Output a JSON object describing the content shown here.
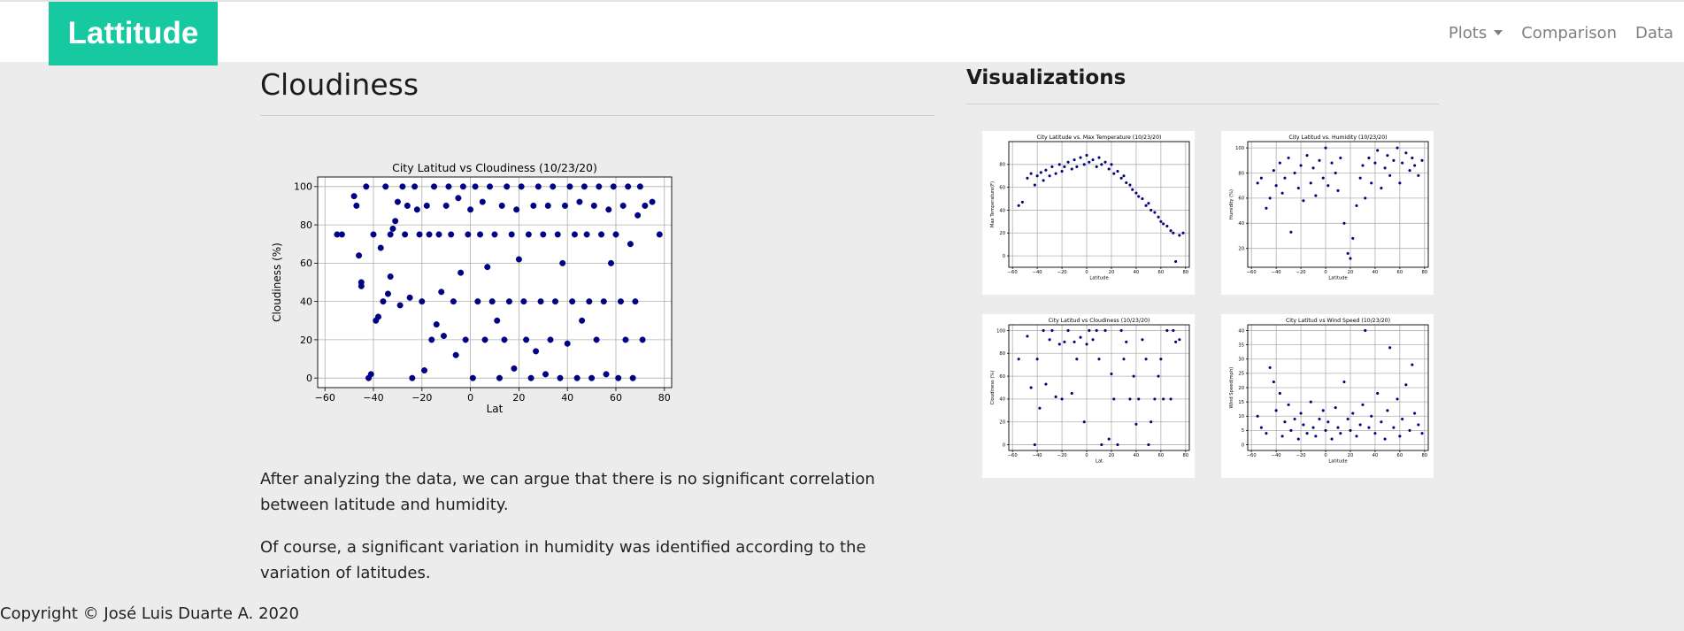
{
  "nav": {
    "brand": "Lattitude",
    "links": [
      "Plots",
      "Comparison",
      "Data"
    ]
  },
  "main": {
    "title": "Cloudiness",
    "paragraphs": [
      "After analyzing the data, we can argue that there is no significant correlation between latitude and humidity.",
      "Of course, a significant variation in humidity was identified according to the variation of latitudes."
    ]
  },
  "visualizations": {
    "title": "Visualizations"
  },
  "footer": {
    "text": "Copyright © José Luis Duarte A. 2020"
  },
  "colors": {
    "brand": "#17c9a0",
    "marker": "#00008b"
  },
  "chart_data": [
    {
      "type": "scatter",
      "title": "City Latitud vs Cloudiness (10/23/20)",
      "xlabel": "Lat",
      "ylabel": "Cloudiness (%)",
      "xlim": [
        -63,
        83
      ],
      "ylim": [
        -5,
        105
      ],
      "xticks": [
        -60,
        -40,
        -20,
        0,
        20,
        40,
        60,
        80
      ],
      "yticks": [
        0,
        20,
        40,
        60,
        80,
        100
      ],
      "grid": true,
      "points": [
        [
          -55,
          75
        ],
        [
          -53,
          75
        ],
        [
          -48,
          95
        ],
        [
          -47,
          90
        ],
        [
          -46,
          64
        ],
        [
          -45,
          50
        ],
        [
          -45,
          48
        ],
        [
          -43,
          100
        ],
        [
          -42,
          0
        ],
        [
          -41,
          2
        ],
        [
          -40,
          75
        ],
        [
          -39,
          30
        ],
        [
          -38,
          32
        ],
        [
          -37,
          68
        ],
        [
          -36,
          40
        ],
        [
          -35,
          100
        ],
        [
          -34,
          44
        ],
        [
          -33,
          75
        ],
        [
          -33,
          53
        ],
        [
          -32,
          78
        ],
        [
          -31,
          82
        ],
        [
          -30,
          92
        ],
        [
          -29,
          38
        ],
        [
          -28,
          100
        ],
        [
          -27,
          75
        ],
        [
          -26,
          90
        ],
        [
          -25,
          42
        ],
        [
          -24,
          0
        ],
        [
          -23,
          100
        ],
        [
          -22,
          88
        ],
        [
          -21,
          75
        ],
        [
          -20,
          40
        ],
        [
          -19,
          4
        ],
        [
          -18,
          90
        ],
        [
          -17,
          75
        ],
        [
          -16,
          20
        ],
        [
          -15,
          100
        ],
        [
          -14,
          28
        ],
        [
          -13,
          75
        ],
        [
          -12,
          45
        ],
        [
          -11,
          22
        ],
        [
          -10,
          90
        ],
        [
          -9,
          100
        ],
        [
          -8,
          75
        ],
        [
          -7,
          40
        ],
        [
          -6,
          12
        ],
        [
          -5,
          94
        ],
        [
          -4,
          55
        ],
        [
          -3,
          100
        ],
        [
          -2,
          20
        ],
        [
          -1,
          75
        ],
        [
          0,
          88
        ],
        [
          1,
          0
        ],
        [
          2,
          100
        ],
        [
          3,
          40
        ],
        [
          4,
          75
        ],
        [
          5,
          92
        ],
        [
          6,
          20
        ],
        [
          7,
          58
        ],
        [
          8,
          100
        ],
        [
          9,
          40
        ],
        [
          10,
          75
        ],
        [
          11,
          30
        ],
        [
          12,
          0
        ],
        [
          13,
          90
        ],
        [
          14,
          20
        ],
        [
          15,
          100
        ],
        [
          16,
          40
        ],
        [
          17,
          75
        ],
        [
          18,
          5
        ],
        [
          19,
          88
        ],
        [
          20,
          62
        ],
        [
          21,
          100
        ],
        [
          22,
          40
        ],
        [
          23,
          20
        ],
        [
          24,
          75
        ],
        [
          25,
          0
        ],
        [
          26,
          90
        ],
        [
          27,
          14
        ],
        [
          28,
          100
        ],
        [
          29,
          40
        ],
        [
          30,
          75
        ],
        [
          31,
          2
        ],
        [
          32,
          90
        ],
        [
          33,
          20
        ],
        [
          34,
          100
        ],
        [
          35,
          40
        ],
        [
          36,
          75
        ],
        [
          37,
          0
        ],
        [
          38,
          60
        ],
        [
          39,
          90
        ],
        [
          40,
          18
        ],
        [
          41,
          100
        ],
        [
          42,
          40
        ],
        [
          43,
          75
        ],
        [
          44,
          0
        ],
        [
          45,
          92
        ],
        [
          46,
          30
        ],
        [
          47,
          100
        ],
        [
          48,
          75
        ],
        [
          49,
          40
        ],
        [
          50,
          0
        ],
        [
          51,
          90
        ],
        [
          52,
          20
        ],
        [
          53,
          100
        ],
        [
          54,
          75
        ],
        [
          55,
          40
        ],
        [
          56,
          2
        ],
        [
          57,
          88
        ],
        [
          58,
          60
        ],
        [
          59,
          100
        ],
        [
          60,
          75
        ],
        [
          61,
          0
        ],
        [
          62,
          40
        ],
        [
          63,
          90
        ],
        [
          64,
          20
        ],
        [
          65,
          100
        ],
        [
          66,
          70
        ],
        [
          67,
          0
        ],
        [
          68,
          40
        ],
        [
          69,
          85
        ],
        [
          70,
          100
        ],
        [
          71,
          20
        ],
        [
          72,
          90
        ],
        [
          75,
          92
        ],
        [
          78,
          75
        ]
      ]
    },
    {
      "type": "scatter",
      "title": "City Latitude vs. Max Temperature (10/23/20)",
      "xlabel": "Latitude",
      "ylabel": "Max Temperature(F)",
      "xlim": [
        -63,
        83
      ],
      "ylim": [
        -10,
        100
      ],
      "xticks": [
        -60,
        -40,
        -20,
        0,
        20,
        40,
        60,
        80
      ],
      "yticks": [
        0,
        20,
        40,
        60,
        80
      ],
      "grid": true,
      "points": [
        [
          -55,
          44
        ],
        [
          -52,
          47
        ],
        [
          -48,
          68
        ],
        [
          -45,
          72
        ],
        [
          -42,
          62
        ],
        [
          -40,
          70
        ],
        [
          -37,
          73
        ],
        [
          -35,
          66
        ],
        [
          -33,
          75
        ],
        [
          -30,
          70
        ],
        [
          -28,
          78
        ],
        [
          -25,
          72
        ],
        [
          -22,
          80
        ],
        [
          -20,
          74
        ],
        [
          -18,
          78
        ],
        [
          -15,
          82
        ],
        [
          -12,
          76
        ],
        [
          -10,
          84
        ],
        [
          -8,
          78
        ],
        [
          -5,
          86
        ],
        [
          -2,
          80
        ],
        [
          0,
          88
        ],
        [
          2,
          82
        ],
        [
          5,
          84
        ],
        [
          8,
          78
        ],
        [
          10,
          86
        ],
        [
          12,
          80
        ],
        [
          15,
          82
        ],
        [
          18,
          76
        ],
        [
          20,
          80
        ],
        [
          22,
          72
        ],
        [
          25,
          74
        ],
        [
          28,
          68
        ],
        [
          30,
          70
        ],
        [
          32,
          64
        ],
        [
          35,
          62
        ],
        [
          37,
          58
        ],
        [
          40,
          55
        ],
        [
          42,
          52
        ],
        [
          45,
          50
        ],
        [
          48,
          44
        ],
        [
          50,
          46
        ],
        [
          52,
          40
        ],
        [
          55,
          38
        ],
        [
          58,
          34
        ],
        [
          60,
          30
        ],
        [
          62,
          28
        ],
        [
          65,
          26
        ],
        [
          68,
          22
        ],
        [
          70,
          20
        ],
        [
          72,
          -5
        ],
        [
          75,
          18
        ],
        [
          78,
          20
        ]
      ]
    },
    {
      "type": "scatter",
      "title": "City Latitud vs. Humidity (10/23/20)",
      "xlabel": "Latitude",
      "ylabel": "Humidity (%)",
      "xlim": [
        -63,
        83
      ],
      "ylim": [
        5,
        105
      ],
      "xticks": [
        -60,
        -40,
        -20,
        0,
        20,
        40,
        60,
        80
      ],
      "yticks": [
        20,
        40,
        60,
        80,
        100
      ],
      "grid": true,
      "points": [
        [
          -55,
          72
        ],
        [
          -52,
          76
        ],
        [
          -48,
          52
        ],
        [
          -45,
          60
        ],
        [
          -42,
          82
        ],
        [
          -40,
          70
        ],
        [
          -37,
          88
        ],
        [
          -35,
          64
        ],
        [
          -33,
          76
        ],
        [
          -30,
          92
        ],
        [
          -28,
          33
        ],
        [
          -25,
          80
        ],
        [
          -22,
          68
        ],
        [
          -20,
          86
        ],
        [
          -18,
          58
        ],
        [
          -15,
          94
        ],
        [
          -12,
          72
        ],
        [
          -10,
          84
        ],
        [
          -8,
          62
        ],
        [
          -5,
          90
        ],
        [
          -2,
          76
        ],
        [
          0,
          100
        ],
        [
          2,
          70
        ],
        [
          5,
          88
        ],
        [
          8,
          80
        ],
        [
          10,
          66
        ],
        [
          12,
          92
        ],
        [
          15,
          40
        ],
        [
          18,
          16
        ],
        [
          20,
          12
        ],
        [
          22,
          28
        ],
        [
          25,
          54
        ],
        [
          28,
          76
        ],
        [
          30,
          86
        ],
        [
          32,
          60
        ],
        [
          35,
          92
        ],
        [
          37,
          72
        ],
        [
          40,
          88
        ],
        [
          42,
          98
        ],
        [
          45,
          68
        ],
        [
          48,
          84
        ],
        [
          50,
          94
        ],
        [
          52,
          78
        ],
        [
          55,
          90
        ],
        [
          58,
          100
        ],
        [
          60,
          72
        ],
        [
          62,
          88
        ],
        [
          65,
          96
        ],
        [
          68,
          82
        ],
        [
          70,
          92
        ],
        [
          72,
          86
        ],
        [
          75,
          78
        ],
        [
          78,
          90
        ]
      ]
    },
    {
      "type": "scatter",
      "title": "City Latitud vs Cloudiness (10/23/20)",
      "xlabel": "Lat",
      "ylabel": "Cloudiness (%)",
      "xlim": [
        -63,
        83
      ],
      "ylim": [
        -5,
        105
      ],
      "xticks": [
        -60,
        -40,
        -20,
        0,
        20,
        40,
        60,
        80
      ],
      "yticks": [
        0,
        20,
        40,
        60,
        80,
        100
      ],
      "grid": true,
      "points": [
        [
          -55,
          75
        ],
        [
          -48,
          95
        ],
        [
          -45,
          50
        ],
        [
          -42,
          0
        ],
        [
          -40,
          75
        ],
        [
          -38,
          32
        ],
        [
          -35,
          100
        ],
        [
          -33,
          53
        ],
        [
          -30,
          92
        ],
        [
          -28,
          100
        ],
        [
          -25,
          42
        ],
        [
          -22,
          88
        ],
        [
          -20,
          40
        ],
        [
          -18,
          90
        ],
        [
          -15,
          100
        ],
        [
          -12,
          45
        ],
        [
          -10,
          90
        ],
        [
          -8,
          75
        ],
        [
          -5,
          94
        ],
        [
          -2,
          20
        ],
        [
          0,
          88
        ],
        [
          2,
          100
        ],
        [
          5,
          92
        ],
        [
          8,
          100
        ],
        [
          10,
          75
        ],
        [
          12,
          0
        ],
        [
          15,
          100
        ],
        [
          18,
          5
        ],
        [
          20,
          62
        ],
        [
          22,
          40
        ],
        [
          25,
          0
        ],
        [
          28,
          100
        ],
        [
          30,
          75
        ],
        [
          32,
          90
        ],
        [
          35,
          40
        ],
        [
          38,
          60
        ],
        [
          40,
          18
        ],
        [
          42,
          40
        ],
        [
          45,
          92
        ],
        [
          48,
          75
        ],
        [
          50,
          0
        ],
        [
          52,
          20
        ],
        [
          55,
          40
        ],
        [
          58,
          60
        ],
        [
          60,
          75
        ],
        [
          62,
          40
        ],
        [
          65,
          100
        ],
        [
          68,
          40
        ],
        [
          70,
          100
        ],
        [
          72,
          90
        ],
        [
          75,
          92
        ]
      ]
    },
    {
      "type": "scatter",
      "title": "City Latitud vs Wind Speed (10/23/20)",
      "xlabel": "Latitude",
      "ylabel": "Wind Speed(mph)",
      "xlim": [
        -63,
        83
      ],
      "ylim": [
        -2,
        42
      ],
      "xticks": [
        -60,
        -40,
        -20,
        0,
        20,
        40,
        60,
        80
      ],
      "yticks": [
        0,
        5,
        10,
        15,
        20,
        25,
        30,
        35,
        40
      ],
      "grid": true,
      "points": [
        [
          -55,
          10
        ],
        [
          -52,
          6
        ],
        [
          -48,
          4
        ],
        [
          -45,
          27
        ],
        [
          -42,
          22
        ],
        [
          -40,
          12
        ],
        [
          -37,
          18
        ],
        [
          -35,
          3
        ],
        [
          -33,
          8
        ],
        [
          -30,
          14
        ],
        [
          -28,
          5
        ],
        [
          -25,
          9
        ],
        [
          -22,
          2
        ],
        [
          -20,
          11
        ],
        [
          -18,
          7
        ],
        [
          -15,
          4
        ],
        [
          -12,
          15
        ],
        [
          -10,
          6
        ],
        [
          -8,
          3
        ],
        [
          -5,
          9
        ],
        [
          -2,
          12
        ],
        [
          0,
          5
        ],
        [
          2,
          8
        ],
        [
          5,
          2
        ],
        [
          8,
          13
        ],
        [
          10,
          6
        ],
        [
          12,
          4
        ],
        [
          15,
          22
        ],
        [
          18,
          9
        ],
        [
          20,
          5
        ],
        [
          22,
          11
        ],
        [
          25,
          3
        ],
        [
          28,
          7
        ],
        [
          30,
          14
        ],
        [
          32,
          40
        ],
        [
          35,
          6
        ],
        [
          37,
          10
        ],
        [
          40,
          4
        ],
        [
          42,
          18
        ],
        [
          45,
          8
        ],
        [
          48,
          2
        ],
        [
          50,
          12
        ],
        [
          52,
          34
        ],
        [
          55,
          6
        ],
        [
          58,
          16
        ],
        [
          60,
          3
        ],
        [
          62,
          9
        ],
        [
          65,
          21
        ],
        [
          68,
          5
        ],
        [
          70,
          28
        ],
        [
          72,
          11
        ],
        [
          75,
          7
        ],
        [
          78,
          4
        ]
      ]
    }
  ]
}
